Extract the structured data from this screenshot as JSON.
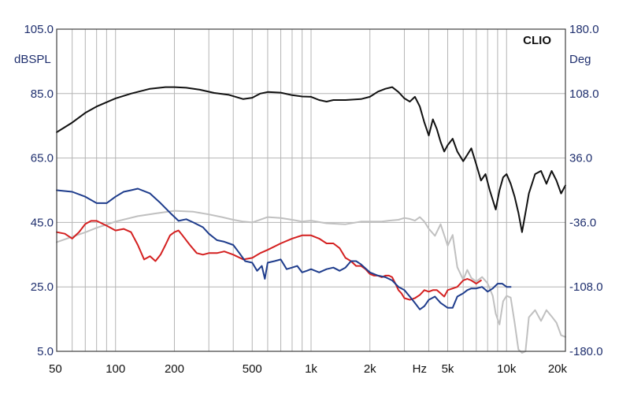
{
  "chart_data": {
    "type": "line",
    "brand": "CLIO",
    "x_unit_label": "Hz",
    "y_left_unit": "dBSPL",
    "y_right_unit": "Deg",
    "x_scale": "log",
    "xlim": [
      50,
      20000
    ],
    "ylim_left": [
      5,
      105
    ],
    "ylim_right": [
      -180,
      180
    ],
    "grid": true,
    "x_tick_values": [
      50,
      100,
      200,
      500,
      1000,
      2000,
      5000,
      10000,
      20000
    ],
    "x_tick_labels": [
      "50",
      "100",
      "200",
      "500",
      "1k",
      "2k",
      "5k",
      "10k",
      "20k"
    ],
    "y_left_ticks": [
      "105.0",
      "85.0",
      "65.0",
      "45.0",
      "25.0",
      "5.0"
    ],
    "y_left_tick_values": [
      105,
      85,
      65,
      45,
      25,
      5
    ],
    "y_right_ticks": [
      "180.0",
      "108.0",
      "36.0",
      "-36.0",
      "-108.0",
      "-180.0"
    ],
    "y_right_tick_values": [
      180,
      108,
      36,
      -36,
      -108,
      -180
    ],
    "colors": {
      "axis_text": "#1f2f6e",
      "grid": "#b4b4b4",
      "frame": "#404040",
      "black_curve": "#111111",
      "gray_curve": "#c0c0c0",
      "red_curve": "#d42020",
      "blue_curve": "#1e3c8c"
    },
    "series": [
      {
        "axis": "left",
        "color_key": "black_curve",
        "x": [
          50,
          60,
          70,
          80,
          100,
          120,
          150,
          180,
          200,
          230,
          270,
          320,
          380,
          450,
          500,
          550,
          600,
          700,
          800,
          900,
          1000,
          1100,
          1200,
          1300,
          1500,
          1800,
          2000,
          2200,
          2400,
          2600,
          2800,
          3000,
          3200,
          3400,
          3600,
          3800,
          4000,
          4200,
          4400,
          4600,
          4800,
          5000,
          5300,
          5600,
          6000,
          6300,
          6600,
          7000,
          7400,
          7800,
          8200,
          8600,
          8800,
          9200,
          9600,
          10000,
          10500,
          11000,
          11500,
          12000,
          12500,
          13000,
          14000,
          15000,
          16000,
          17000,
          18000,
          19000,
          20000
        ],
        "y": [
          73,
          76,
          79,
          81,
          83.5,
          85,
          86.5,
          87,
          87,
          86.8,
          86.2,
          85.2,
          84.6,
          83.3,
          83.7,
          85,
          85.5,
          85.3,
          84.5,
          84.1,
          84,
          83,
          82.5,
          83,
          83,
          83.3,
          84,
          85.6,
          86.5,
          87,
          85.5,
          83.5,
          82.5,
          84,
          81,
          76,
          72,
          77,
          74,
          70,
          67,
          69,
          71,
          67,
          64,
          66,
          68,
          63,
          58,
          60,
          55,
          51,
          49,
          55,
          59,
          60,
          57,
          53,
          48,
          42,
          48,
          54,
          60,
          61,
          57,
          61,
          58,
          54,
          56.5
        ]
      },
      {
        "axis": "right",
        "color_key": "gray_curve",
        "x": [
          50,
          60,
          70,
          80,
          100,
          130,
          160,
          200,
          250,
          300,
          350,
          400,
          450,
          500,
          600,
          700,
          800,
          900,
          1000,
          1200,
          1500,
          1800,
          2000,
          2300,
          2500,
          2800,
          3000,
          3200,
          3400,
          3600,
          3800,
          4000,
          4300,
          4600,
          5000,
          5300,
          5600,
          6000,
          6300,
          6600,
          7000,
          7500,
          8000,
          8500,
          8800,
          9200,
          9600,
          10000,
          10500,
          11000,
          11500,
          12000,
          12500,
          13000,
          14000,
          15000,
          16000,
          17000,
          18000,
          19000,
          20000
        ],
        "y": [
          -58,
          -52,
          -47,
          -42,
          -35,
          -29,
          -26,
          -23,
          -24,
          -27,
          -30,
          -33,
          -35,
          -36,
          -30,
          -31,
          -33,
          -35,
          -34,
          -37,
          -38,
          -35,
          -35,
          -35,
          -34,
          -33,
          -31,
          -32,
          -34,
          -30,
          -35,
          -43,
          -51,
          -38,
          -62,
          -50,
          -86,
          -100,
          -89,
          -98,
          -102,
          -97,
          -104,
          -118,
          -138,
          -150,
          -124,
          -118,
          -120,
          -148,
          -178,
          -190,
          -180,
          -142,
          -134,
          -146,
          -134,
          -141,
          -148,
          -162,
          -164
        ]
      },
      {
        "axis": "left",
        "color_key": "red_curve",
        "x": [
          50,
          55,
          60,
          65,
          70,
          75,
          80,
          90,
          100,
          110,
          120,
          130,
          140,
          150,
          160,
          170,
          180,
          190,
          200,
          210,
          220,
          240,
          260,
          280,
          300,
          330,
          360,
          400,
          450,
          500,
          550,
          600,
          700,
          800,
          900,
          1000,
          1100,
          1200,
          1300,
          1400,
          1500,
          1600,
          1700,
          1800,
          1900,
          2000,
          2100,
          2200,
          2300,
          2400,
          2500,
          2600,
          2700,
          2800,
          2900,
          3000,
          3200,
          3400,
          3600,
          3800,
          4000,
          4200,
          4400,
          4600,
          4800,
          5000,
          5300,
          5600,
          6000,
          6300,
          6600,
          7000,
          7400
        ],
        "y": [
          42,
          41.5,
          40,
          42,
          44.5,
          45.5,
          45.5,
          44,
          42.5,
          43,
          42,
          38,
          33.5,
          34.5,
          33,
          35,
          38,
          41,
          42,
          42.5,
          41,
          38,
          35.5,
          35,
          35.5,
          35.5,
          36,
          35,
          33.5,
          34,
          35.5,
          36.5,
          38.5,
          40,
          41,
          41,
          40,
          38.5,
          38.5,
          37,
          34,
          33,
          31.5,
          31.5,
          30.5,
          29,
          28.5,
          28.5,
          28,
          28.5,
          28.5,
          28,
          26,
          24,
          23,
          21.5,
          21,
          21.5,
          22.5,
          24,
          23.5,
          24,
          24,
          23,
          22,
          24,
          24.5,
          25,
          27,
          27.5,
          27,
          26,
          27
        ]
      },
      {
        "axis": "left",
        "color_key": "blue_curve",
        "x": [
          50,
          60,
          70,
          80,
          90,
          100,
          110,
          120,
          130,
          150,
          170,
          190,
          210,
          230,
          250,
          280,
          300,
          330,
          360,
          400,
          430,
          460,
          500,
          530,
          560,
          580,
          600,
          650,
          700,
          750,
          800,
          850,
          900,
          950,
          1000,
          1100,
          1200,
          1300,
          1400,
          1500,
          1600,
          1700,
          1800,
          2000,
          2200,
          2400,
          2600,
          2800,
          3000,
          3200,
          3400,
          3600,
          3800,
          4000,
          4300,
          4600,
          5000,
          5300,
          5600,
          6000,
          6300,
          6600,
          7000,
          7500,
          8000,
          8500,
          9000,
          9500,
          10000,
          10500
        ],
        "y": [
          55,
          54.5,
          53,
          51,
          51,
          53,
          54.5,
          55,
          55.5,
          54,
          51,
          48,
          45.5,
          46,
          45,
          43.5,
          41.5,
          39.5,
          39,
          38,
          35.5,
          33,
          32.5,
          30,
          31.5,
          27.5,
          32.5,
          33,
          33.5,
          30.5,
          31,
          31.5,
          29.5,
          30,
          30.5,
          29.5,
          30.5,
          31,
          30,
          31,
          33,
          33,
          32,
          29.5,
          28.5,
          28,
          27,
          25,
          24,
          22,
          20,
          18,
          19,
          21,
          22,
          20,
          18.5,
          18.5,
          22,
          23,
          24,
          24.5,
          24.5,
          25,
          23.5,
          24.5,
          26,
          26,
          25,
          25
        ]
      }
    ]
  }
}
